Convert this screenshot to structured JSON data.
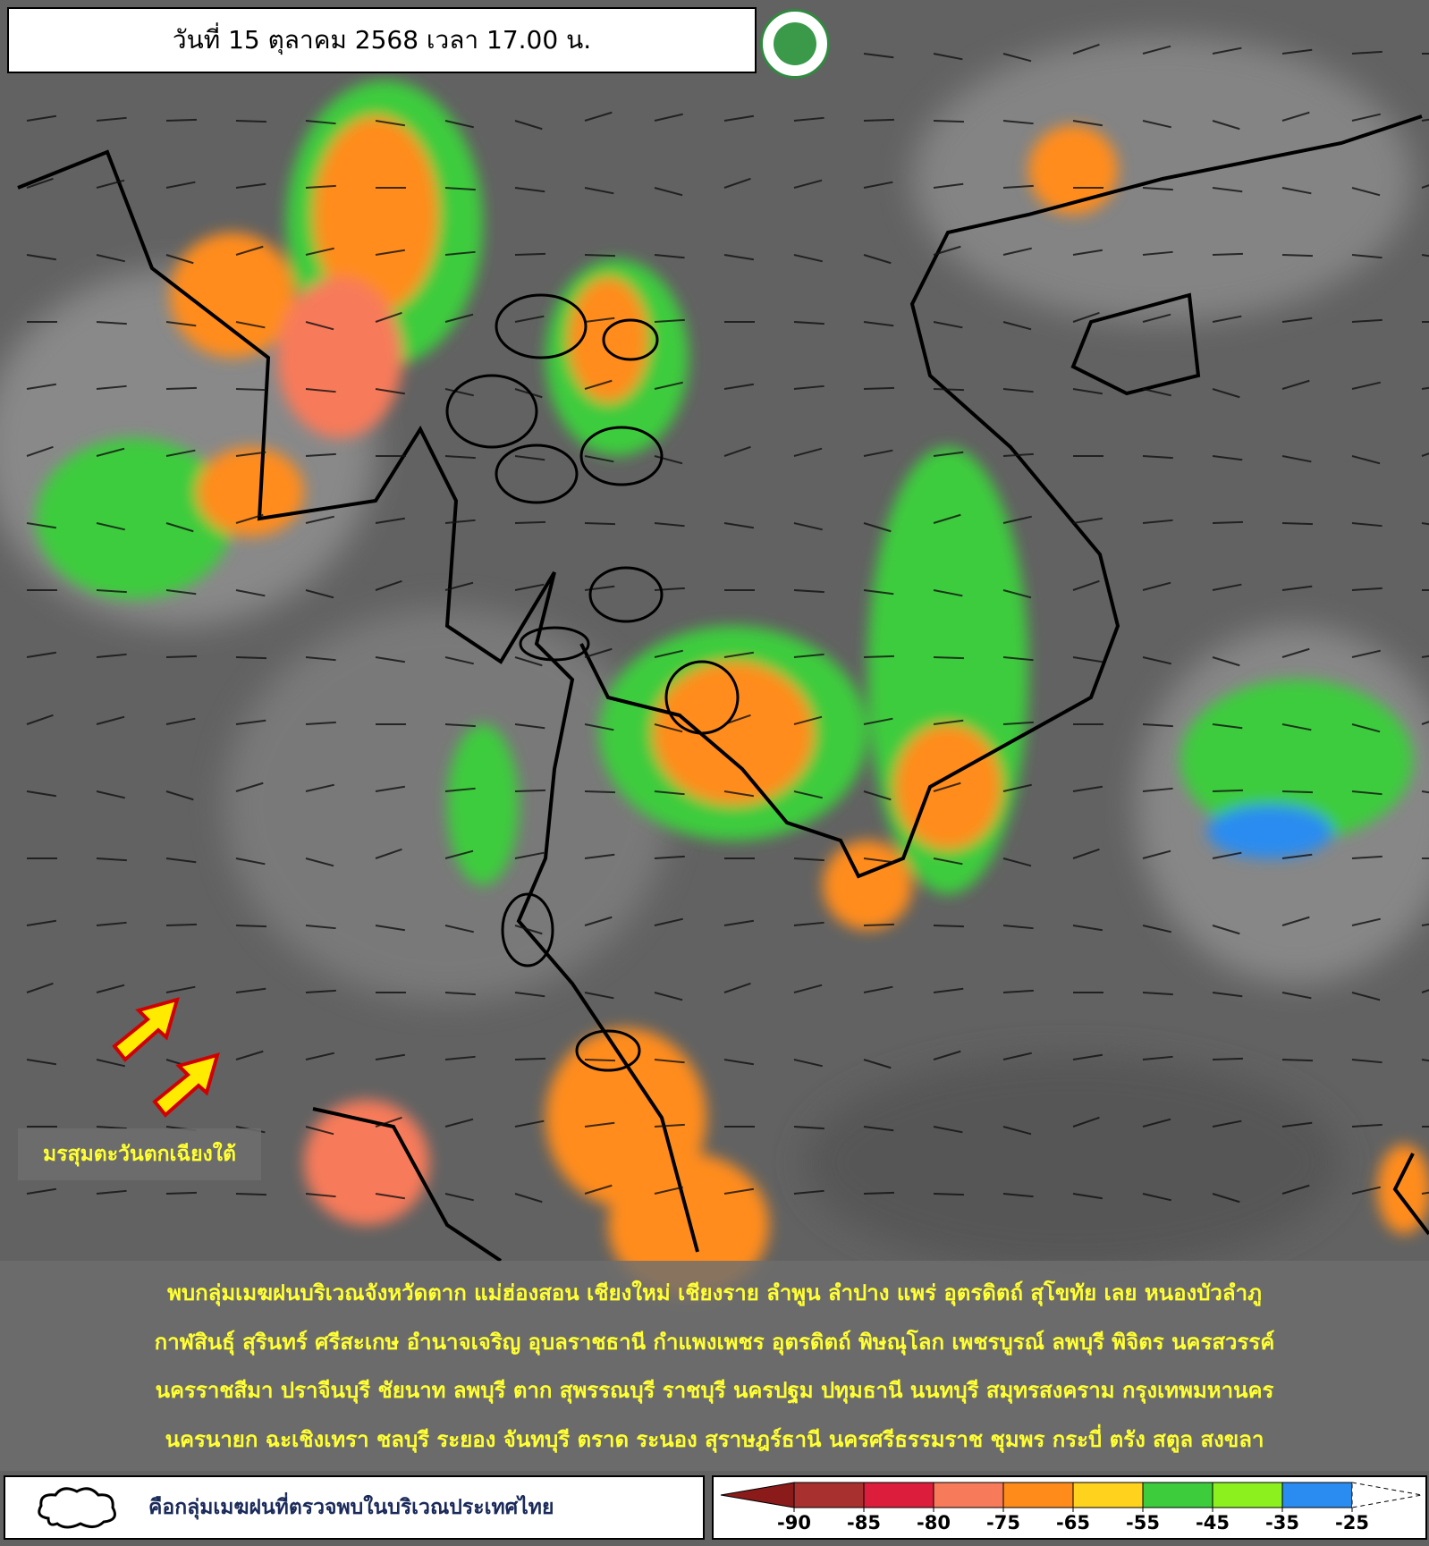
{
  "header": {
    "title": "วันที่ 15 ตุลาคม 2568 เวลา 17.00 น."
  },
  "annotation": "มรสุมตะวันตกเฉียงใต้",
  "summary": {
    "lines": [
      "พบกลุ่มเมฆฝนบริเวณจังหวัดตาก แม่ฮ่องสอน เชียงใหม่ เชียงราย ลำพูน ลำปาง แพร่ อุตรดิตถ์ สุโขทัย เลย หนองบัวลำภู",
      "กาฬสินธุ์ สุรินทร์ ศรีสะเกษ อำนาจเจริญ อุบลราชธานี กำแพงเพชร อุตรดิตถ์ พิษณุโลก เพชรบูรณ์ ลพบุรี พิจิตร นครสวรรค์",
      "นครราชสีมา ปราจีนบุรี ชัยนาท ลพบุรี ตาก สุพรรณบุรี ราชบุรี นครปฐม ปทุมธานี นนทบุรี สมุทรสงคราม กรุงเทพมหานคร",
      "นครนายก ฉะเชิงเทรา ชลบุรี ระยอง จันทบุรี ตราด ระนอง สุราษฎร์ธานี นครศรีธรรมราช ชุมพร กระบี่ ตรัง สตูล สงขลา"
    ]
  },
  "legend": {
    "text": "คือกลุ่มเมฆฝนที่ตรวจพบในบริเวณประเทศไทย"
  },
  "colorbar": {
    "ticks": [
      -90,
      -85,
      -80,
      -75,
      -65,
      -55,
      -45,
      -35,
      -25
    ],
    "colors": [
      "#8b1a1a",
      "#a8302e",
      "#dc1e3c",
      "#f77a5a",
      "#ff8c1a",
      "#ffd21e",
      "#3ccc3c",
      "#8cf01e",
      "#2a8cf0",
      "#ffffff"
    ]
  }
}
